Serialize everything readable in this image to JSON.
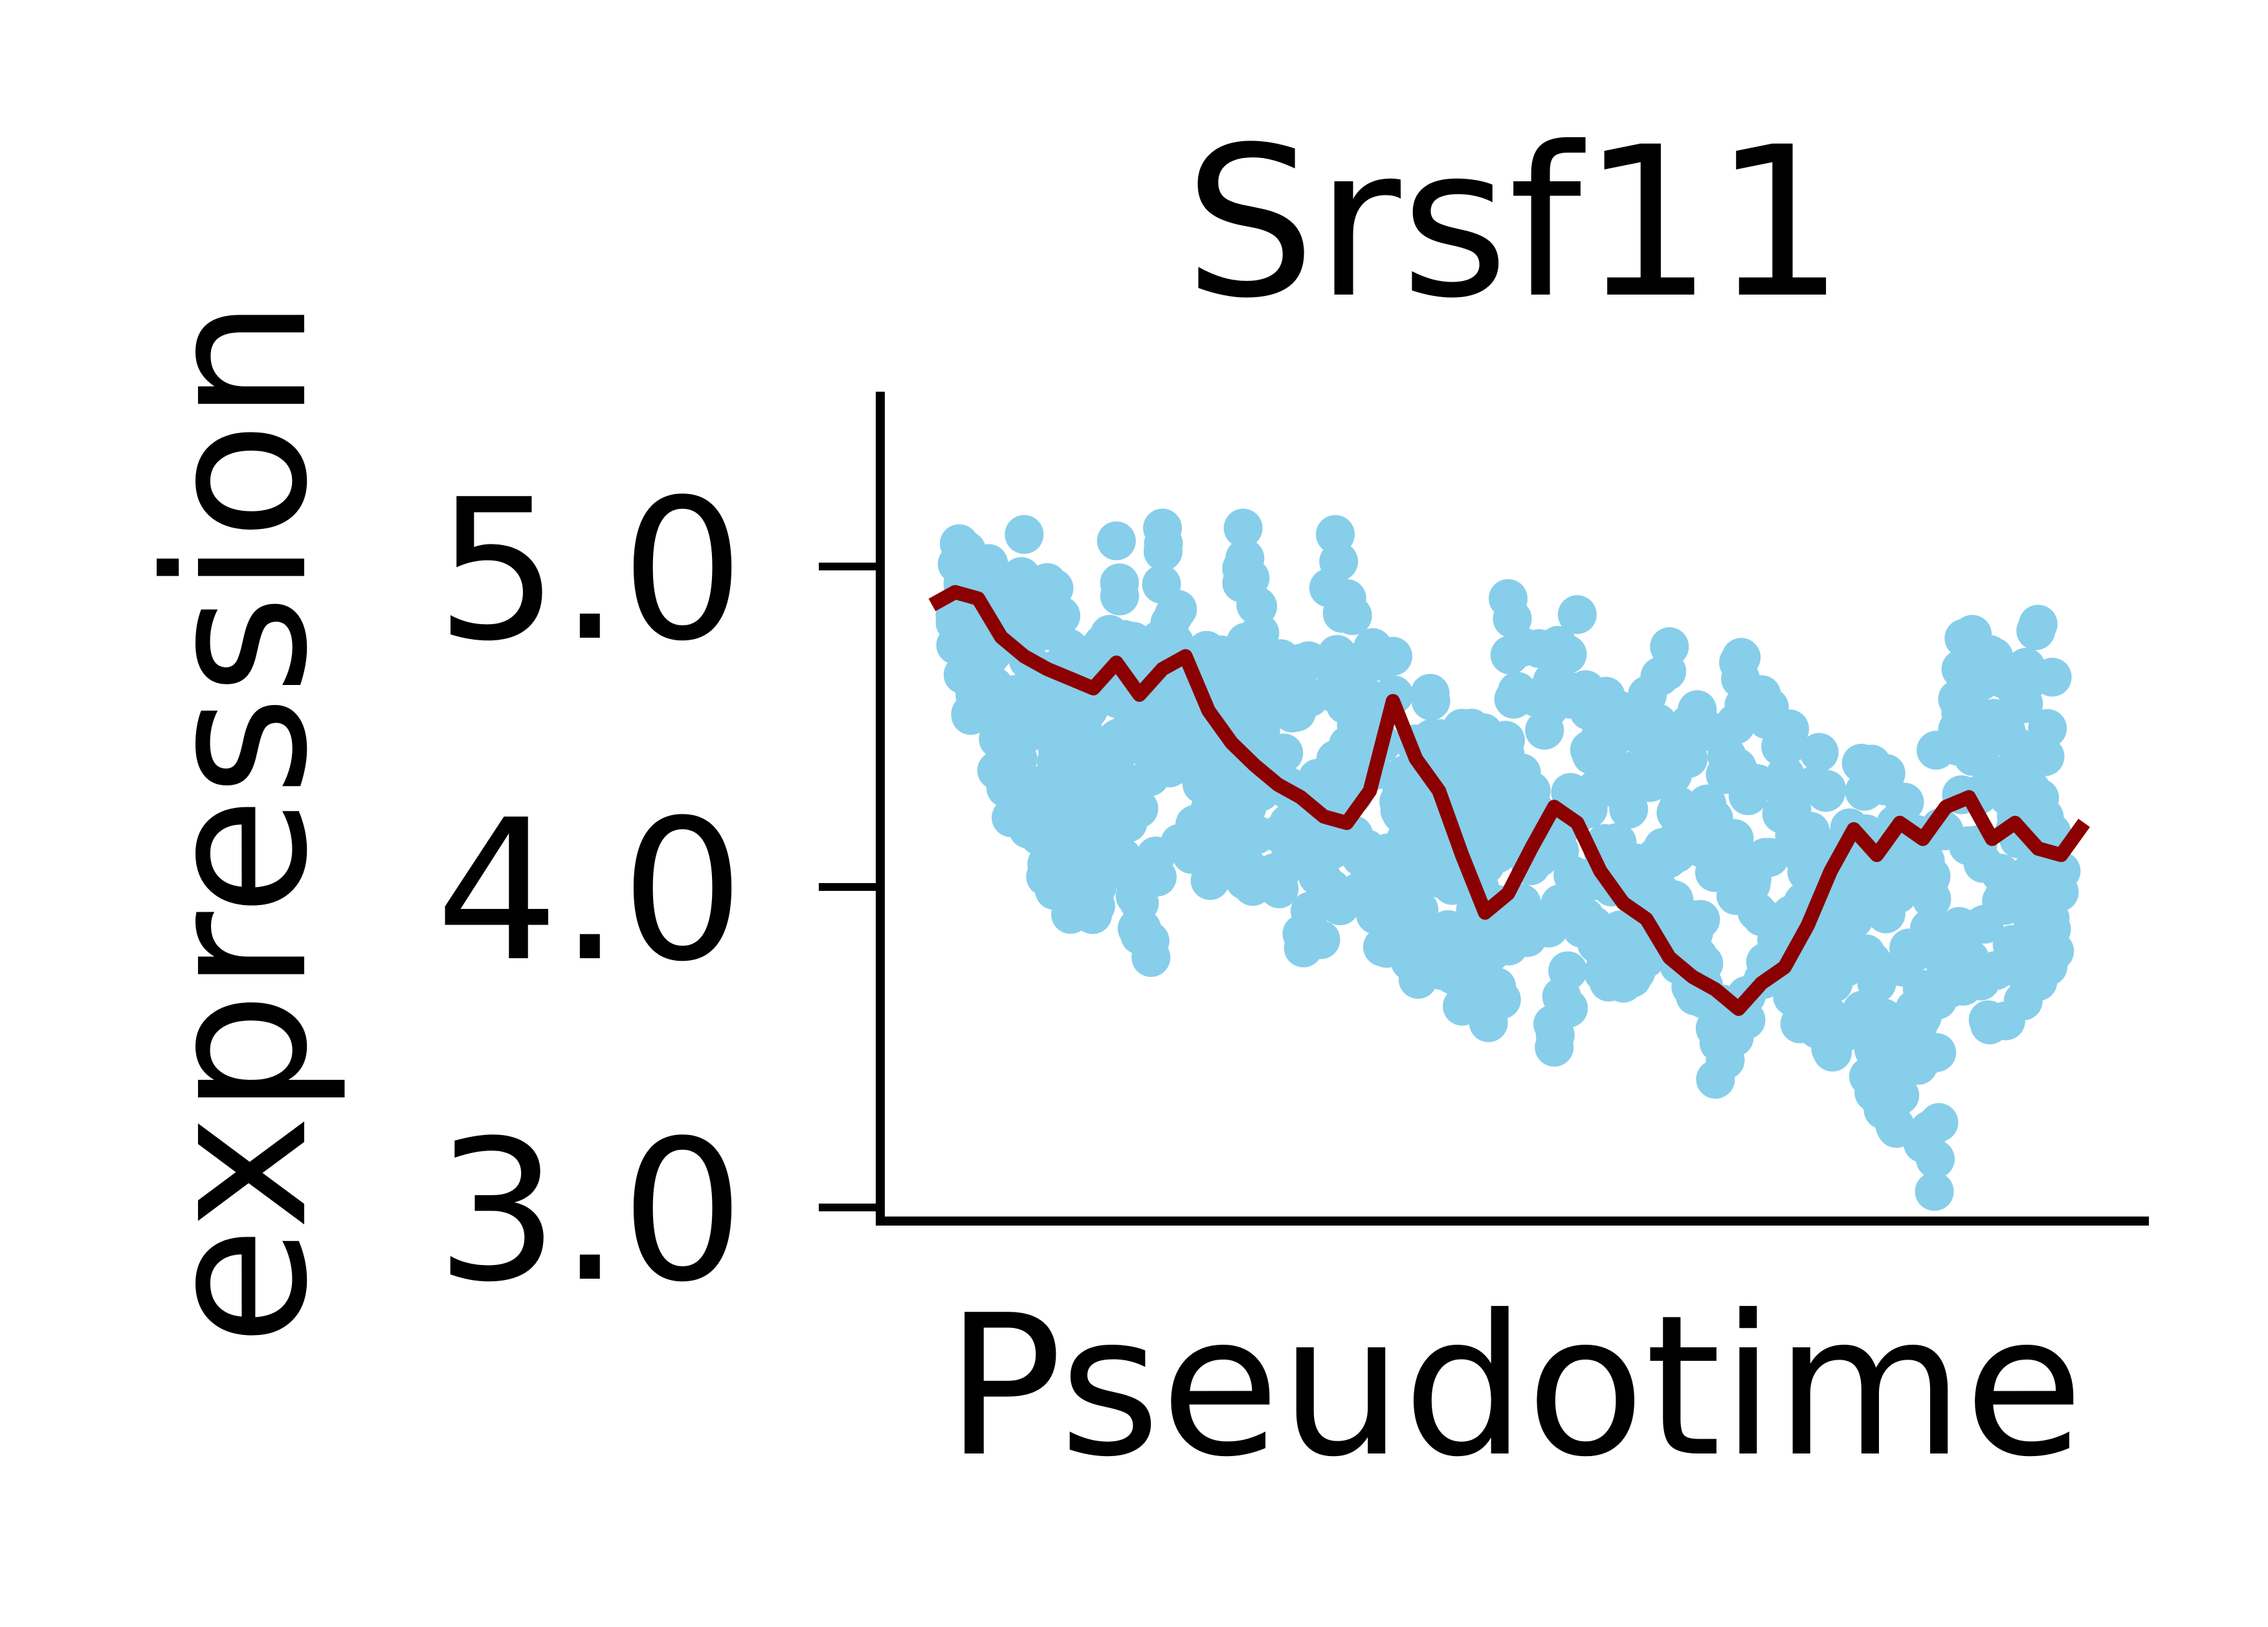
{
  "chart_data": {
    "type": "scatter",
    "title": "Srsf11",
    "xlabel": "Pseudotime",
    "ylabel": "expression",
    "xlim": [
      0,
      100
    ],
    "ylim": [
      3.0,
      5.25
    ],
    "yticks": [
      {
        "value": 3.0,
        "label": "3.0"
      },
      {
        "value": 4.0,
        "label": "4.0"
      },
      {
        "value": 5.0,
        "label": "5.0"
      }
    ],
    "x_ticks_shown": false,
    "grid": false,
    "legend": "none",
    "colors": {
      "points": "#87CEEB",
      "trend": "#8B0000",
      "axis": "#000000"
    },
    "series": [
      {
        "kind": "points",
        "x": [
          2,
          3,
          5,
          7,
          8,
          10,
          11,
          12,
          14,
          16,
          17,
          18,
          19,
          20,
          21,
          22,
          23,
          25,
          27,
          29,
          30,
          31,
          33,
          35,
          36,
          38,
          39,
          40,
          41,
          43,
          45,
          47,
          49,
          50,
          52,
          54,
          56,
          57,
          59,
          60,
          62,
          64,
          65,
          67,
          68,
          70,
          72,
          74,
          76,
          77,
          79,
          80,
          82,
          84,
          86,
          87,
          88,
          90,
          92,
          94,
          96,
          98
        ],
        "y": [
          4.85,
          5.05,
          4.72,
          4.9,
          5.1,
          4.95,
          4.4,
          4.3,
          4.6,
          5.08,
          4.2,
          3.95,
          3.78,
          5.12,
          4.85,
          4.55,
          4.7,
          4.35,
          5.12,
          4.65,
          4.4,
          4.3,
          4.1,
          5.1,
          4.9,
          4.05,
          4.55,
          4.72,
          4.35,
          4.2,
          4.08,
          3.85,
          3.65,
          4.9,
          4.3,
          3.5,
          4.85,
          4.55,
          4.0,
          3.7,
          4.45,
          4.75,
          3.88,
          3.65,
          3.4,
          4.7,
          4.6,
          4.3,
          3.85,
          4.42,
          4.05,
          3.9,
          3.7,
          3.35,
          3.2,
          3.05,
          3.75,
          4.6,
          4.35,
          4.65,
          4.82,
          4.05
        ],
        "band_upper": [
          5.1,
          5.05,
          5.05,
          5.0,
          5.1,
          5.0,
          4.9,
          4.8,
          4.8,
          5.1,
          4.8,
          4.75,
          4.7,
          5.12,
          4.95,
          4.85,
          4.8,
          4.75,
          5.12,
          4.75,
          4.7,
          4.75,
          4.8,
          5.1,
          4.9,
          4.85,
          4.75,
          4.72,
          4.75,
          4.7,
          4.55,
          4.5,
          4.5,
          4.9,
          4.85,
          4.75,
          4.85,
          4.65,
          4.62,
          4.6,
          4.6,
          4.75,
          4.6,
          4.55,
          4.5,
          4.75,
          4.6,
          4.55,
          4.35,
          4.42,
          4.25,
          4.4,
          4.4,
          4.3,
          4.3,
          4.45,
          4.8,
          4.85,
          4.75,
          4.8,
          4.82,
          4.65
        ],
        "band_lower": [
          4.6,
          4.55,
          4.4,
          4.2,
          4.15,
          4.0,
          3.95,
          3.9,
          3.9,
          4.2,
          3.95,
          3.85,
          3.78,
          4.15,
          4.1,
          4.05,
          4.1,
          3.95,
          4.0,
          4.0,
          3.9,
          3.85,
          3.75,
          3.9,
          3.95,
          3.85,
          3.8,
          3.75,
          3.7,
          3.7,
          3.65,
          3.6,
          3.55,
          3.65,
          3.6,
          3.5,
          3.65,
          3.7,
          3.7,
          3.65,
          3.7,
          3.75,
          3.75,
          3.6,
          3.35,
          3.55,
          3.6,
          3.65,
          3.5,
          3.5,
          3.45,
          3.4,
          3.3,
          3.2,
          3.1,
          3.05,
          3.5,
          3.75,
          3.55,
          3.6,
          3.7,
          3.8
        ]
      },
      {
        "kind": "line",
        "x": [
          0,
          2,
          4,
          6,
          8,
          10,
          12,
          14,
          16,
          18,
          20,
          22,
          24,
          26,
          28,
          30,
          32,
          34,
          36,
          38,
          40,
          42,
          44,
          46,
          48,
          50,
          52,
          54,
          56,
          58,
          60,
          62,
          64,
          66,
          68,
          70,
          72,
          74,
          76,
          78,
          80,
          82,
          84,
          86,
          88,
          90,
          92,
          94,
          96,
          98,
          100
        ],
        "y": [
          4.88,
          4.92,
          4.9,
          4.78,
          4.72,
          4.68,
          4.65,
          4.62,
          4.7,
          4.6,
          4.68,
          4.72,
          4.55,
          4.45,
          4.38,
          4.32,
          4.28,
          4.22,
          4.2,
          4.3,
          4.58,
          4.4,
          4.3,
          4.1,
          3.92,
          3.98,
          4.12,
          4.25,
          4.2,
          4.05,
          3.95,
          3.9,
          3.78,
          3.72,
          3.68,
          3.62,
          3.7,
          3.75,
          3.88,
          4.05,
          4.18,
          4.1,
          4.2,
          4.15,
          4.25,
          4.28,
          4.15,
          4.2,
          4.12,
          4.1,
          4.2
        ]
      }
    ]
  }
}
